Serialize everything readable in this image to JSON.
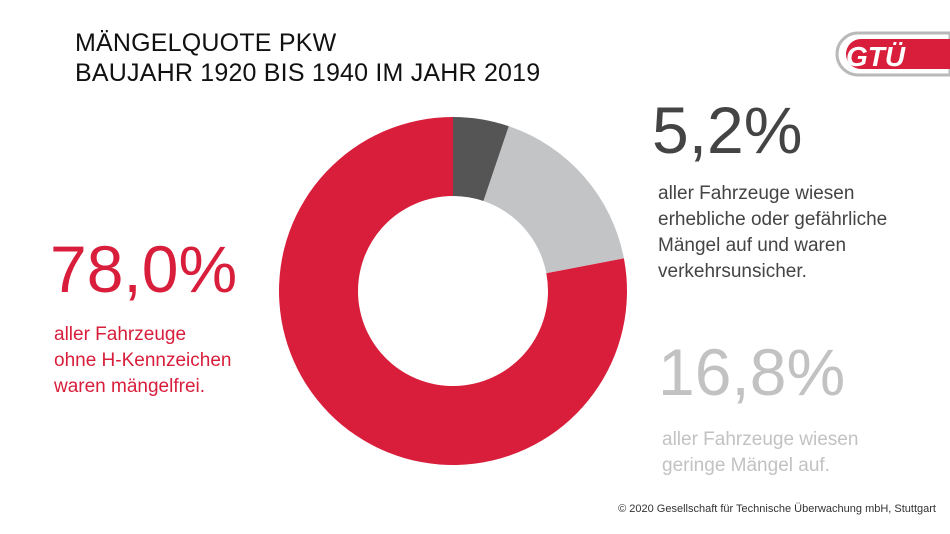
{
  "title_line1": "MÄNGELQUOTE PKW",
  "title_line2": "BAUJAHR 1920 BIS 1940 IM JAHR 2019",
  "logo_text": "GTÜ",
  "colors": {
    "red": "#d81e3b",
    "dark": "#555555",
    "light": "#c3c4c6"
  },
  "chart_data": {
    "type": "pie",
    "variant": "donut",
    "slices": [
      {
        "value": 5.2,
        "label": "5,2%",
        "description": "aller Fahrzeuge wiesen erhebliche oder gefährliche Mängel auf und waren verkehrsunsicher.",
        "color": "#555555"
      },
      {
        "value": 16.8,
        "label": "16,8%",
        "description": "aller Fahrzeuge wiesen geringe Mängel auf.",
        "color": "#c3c4c6"
      },
      {
        "value": 78.0,
        "label": "78,0%",
        "description": "aller Fahrzeuge ohne H-Kennzeichen waren mängelfrei.",
        "color": "#d81e3b"
      }
    ]
  },
  "labels": {
    "red_pct": "78,0%",
    "red_desc": [
      "aller Fahrzeuge",
      "ohne H-Kennzeichen",
      "waren mängelfrei."
    ],
    "dark_pct": "5,2%",
    "dark_desc": [
      "aller Fahrzeuge wiesen",
      "erhebliche oder gefährliche",
      "Mängel auf und waren",
      "verkehrsunsicher."
    ],
    "light_pct": "16,8%",
    "light_desc": [
      "aller Fahrzeuge wiesen",
      "geringe Mängel auf."
    ]
  },
  "footer": "© 2020 Gesellschaft für Technische Überwachung mbH, Stuttgart"
}
